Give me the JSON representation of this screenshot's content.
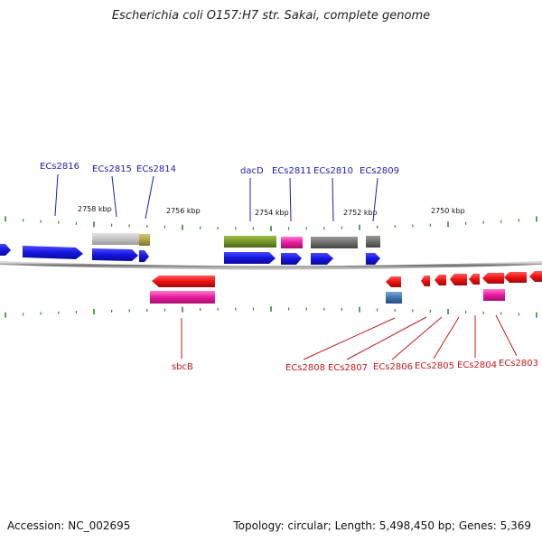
{
  "title": "Escherichia coli O157:H7 str. Sakai, complete genome",
  "footer": {
    "accession": "Accession: NC_002695",
    "info": "Topology: circular; Length: 5,498,450 bp; Genes: 5,369"
  },
  "colors": {
    "forward": "#1515e0",
    "reverse": "#ee1111",
    "top_label": "#1c1cb0",
    "bottom_label": "#c41a1a",
    "tick": "#2f8a2f",
    "backbone": "#7a7a7a"
  },
  "scale_labels": [
    "2758 kbp",
    "2756 kbp",
    "2754 kbp",
    "2752 kbp",
    "2750 kbp"
  ],
  "top_labels": [
    "ECs2816",
    "ECs2815",
    "ECs2814",
    "dacD",
    "ECs2811",
    "ECs2810",
    "ECs2809"
  ],
  "bottom_labels": [
    "sbcB",
    "ECs2808",
    "ECs2807",
    "ECs2806",
    "ECs2805",
    "ECs2804",
    "ECs2803"
  ]
}
